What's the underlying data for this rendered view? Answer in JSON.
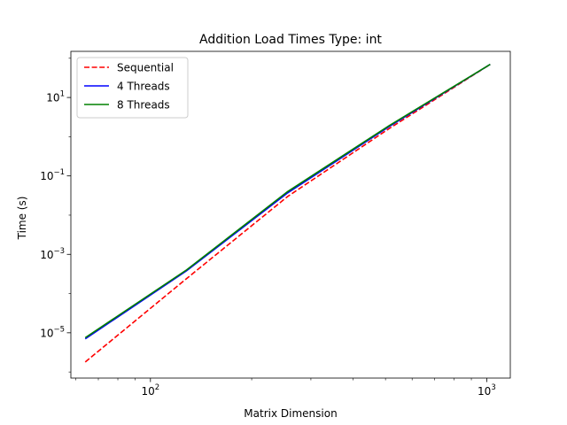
{
  "chart_data": {
    "type": "line",
    "title": "Addition Load Times Type: int",
    "xlabel": "Matrix Dimension",
    "ylabel": "Time (s)",
    "xscale": "log",
    "yscale": "log",
    "xlim": [
      58,
      1175
    ],
    "ylim": [
      7e-07,
      150
    ],
    "grid": false,
    "legend_position": "top-left",
    "x_ticks": [
      {
        "value": 100,
        "base": "10",
        "exp": "2"
      },
      {
        "value": 1000,
        "base": "10",
        "exp": "3"
      }
    ],
    "y_ticks": [
      {
        "value": 1e-05,
        "base": "10",
        "exp": "−5"
      },
      {
        "value": 0.001,
        "base": "10",
        "exp": "−3"
      },
      {
        "value": 0.1,
        "base": "10",
        "exp": "−1"
      },
      {
        "value": 10,
        "base": "10",
        "exp": "1"
      }
    ],
    "x": [
      64,
      128,
      256,
      512,
      1024
    ],
    "series": [
      {
        "name": "Sequential",
        "color": "#ff0000",
        "dash": "dashed",
        "values": [
          1.8e-06,
          0.00024,
          0.03,
          1.6,
          70
        ]
      },
      {
        "name": "4 Threads",
        "color": "#0000ff",
        "dash": "solid",
        "values": [
          7e-06,
          0.00038,
          0.037,
          1.8,
          70
        ]
      },
      {
        "name": "8 Threads",
        "color": "#008000",
        "dash": "solid",
        "values": [
          7.5e-06,
          0.0004,
          0.04,
          1.9,
          70
        ]
      }
    ]
  }
}
